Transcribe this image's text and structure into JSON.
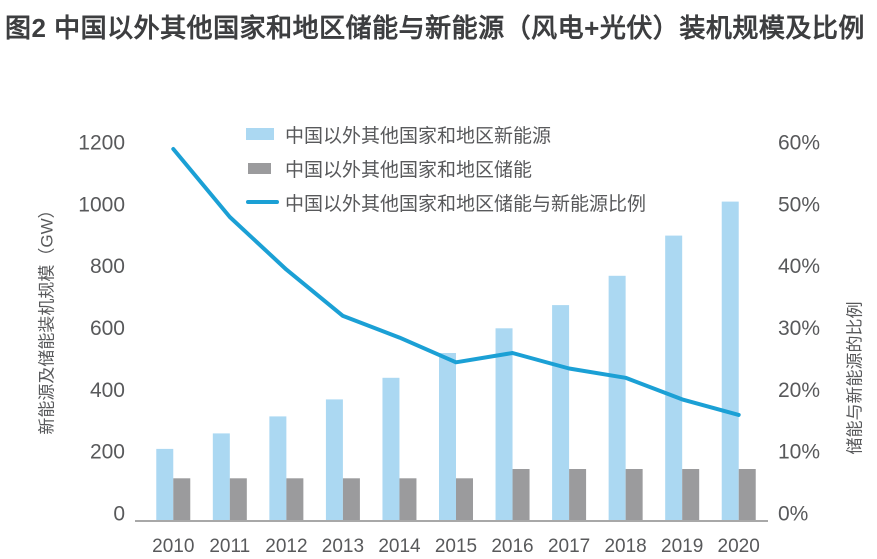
{
  "page": {
    "title": "图2 中国以外其他国家和地区储能与新能源（风电+光伏）装机规模及比例"
  },
  "chart_data": {
    "type": "bar+line",
    "categories": [
      "2010",
      "2011",
      "2012",
      "2013",
      "2014",
      "2015",
      "2016",
      "2017",
      "2018",
      "2019",
      "2020"
    ],
    "series": [
      {
        "name": "中国以外其他国家和地区新能源",
        "type": "bar",
        "axis": "left",
        "color": "#ABD8F2",
        "values": [
          230,
          280,
          335,
          390,
          460,
          540,
          620,
          695,
          790,
          920,
          1030
        ]
      },
      {
        "name": "中国以外其他国家和地区储能",
        "type": "bar",
        "axis": "left",
        "color": "#9B9B9D",
        "values": [
          135,
          135,
          135,
          135,
          135,
          135,
          165,
          165,
          165,
          165,
          165
        ]
      },
      {
        "name": "中国以外其他国家和地区储能与新能源比例",
        "type": "line",
        "axis": "right",
        "color": "#1BA0D5",
        "unit": "%",
        "values": [
          60,
          49,
          40.5,
          33,
          29.5,
          25.5,
          27,
          24.5,
          23,
          19.5,
          17
        ]
      }
    ],
    "left_axis": {
      "title": "新能源及储能装机规模（GW）",
      "min": 0,
      "max": 1200,
      "step": 200,
      "tick_labels": [
        "1200",
        "1000",
        "800",
        "600",
        "400",
        "200",
        "0"
      ]
    },
    "right_axis": {
      "title": "储能与新能源的比例",
      "min": 0,
      "max": 60,
      "step": 10,
      "tick_labels": [
        "60%",
        "50%",
        "40%",
        "30%",
        "20%",
        "10%",
        "0%"
      ]
    },
    "grid": false,
    "legend_position": "top-left-inside",
    "axis_line_color": "#A8A8A8"
  }
}
